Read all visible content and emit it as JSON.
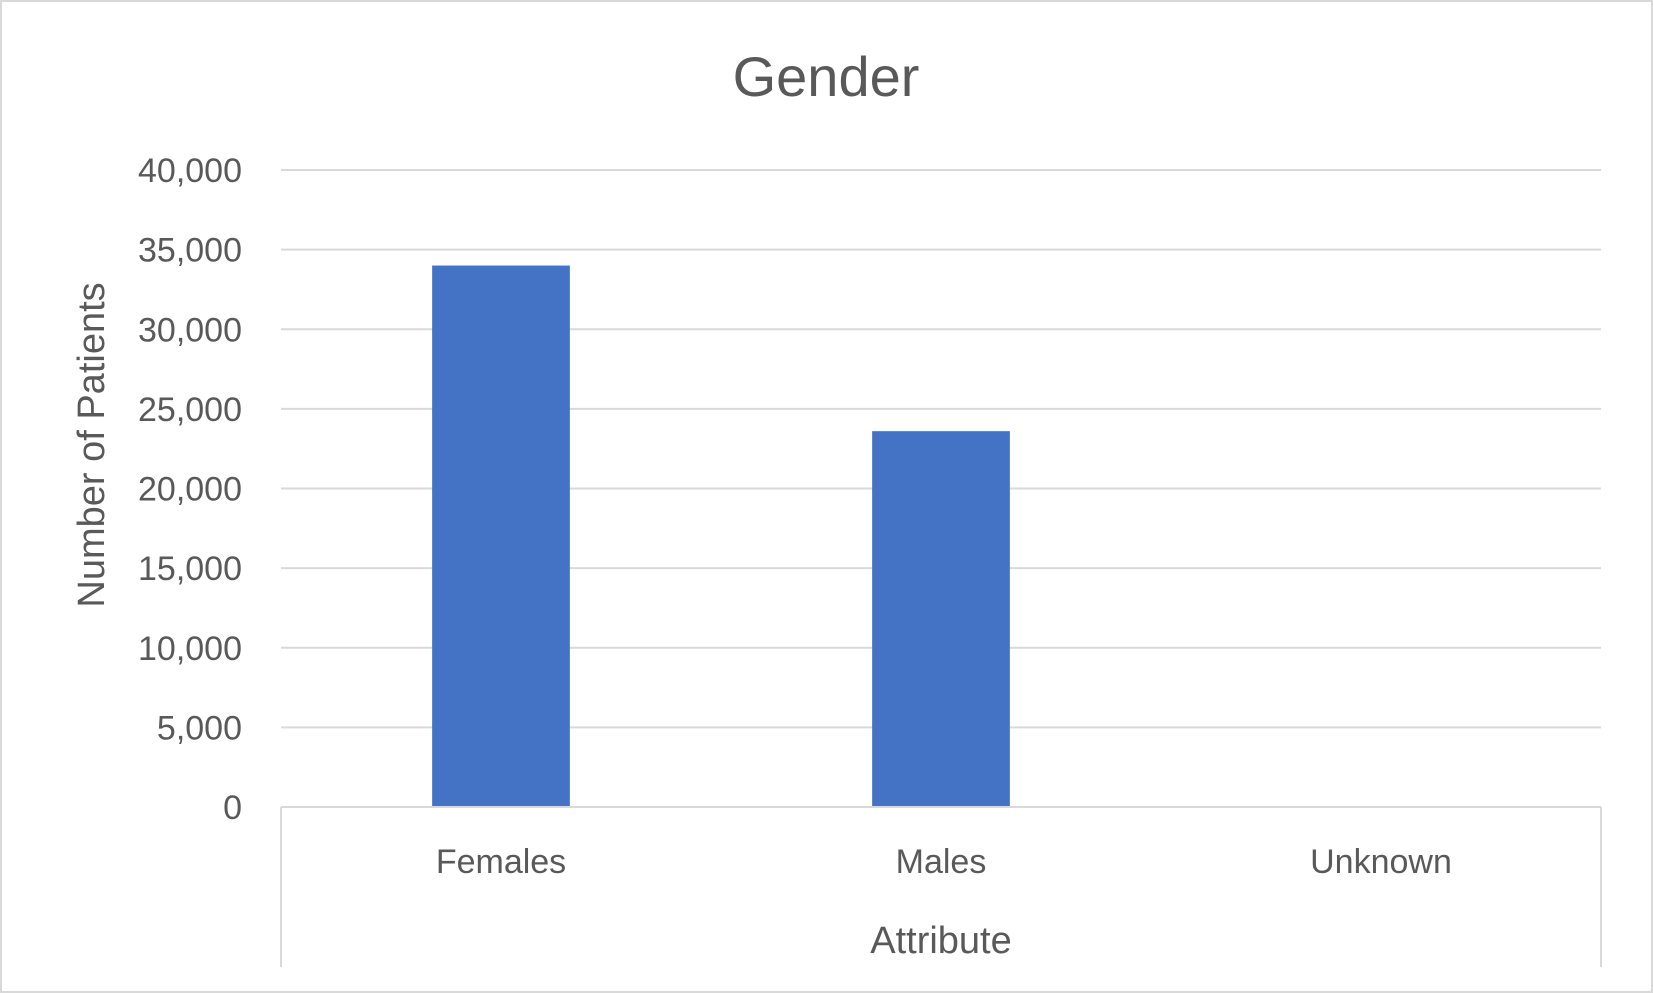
{
  "chart_data": {
    "type": "bar",
    "title": "Gender",
    "xlabel": "Attribute",
    "ylabel": "Number of Patients",
    "categories": [
      "Females",
      "Males",
      "Unknown"
    ],
    "series": [
      {
        "name": "Number of Patients",
        "values": [
          34000,
          23600,
          0
        ],
        "color": "#4472c4"
      }
    ],
    "ylim": [
      0,
      40000
    ],
    "yticks": [
      0,
      5000,
      10000,
      15000,
      20000,
      25000,
      30000,
      35000,
      40000
    ],
    "ytick_labels": [
      "0",
      "5,000",
      "10,000",
      "15,000",
      "20,000",
      "25,000",
      "30,000",
      "35,000",
      "40,000"
    ],
    "grid": true,
    "legend": "none"
  },
  "colors": {
    "bar": "#4472c4",
    "grid": "#d9d9d9",
    "text": "#595959",
    "frame": "#d9d9d9"
  }
}
